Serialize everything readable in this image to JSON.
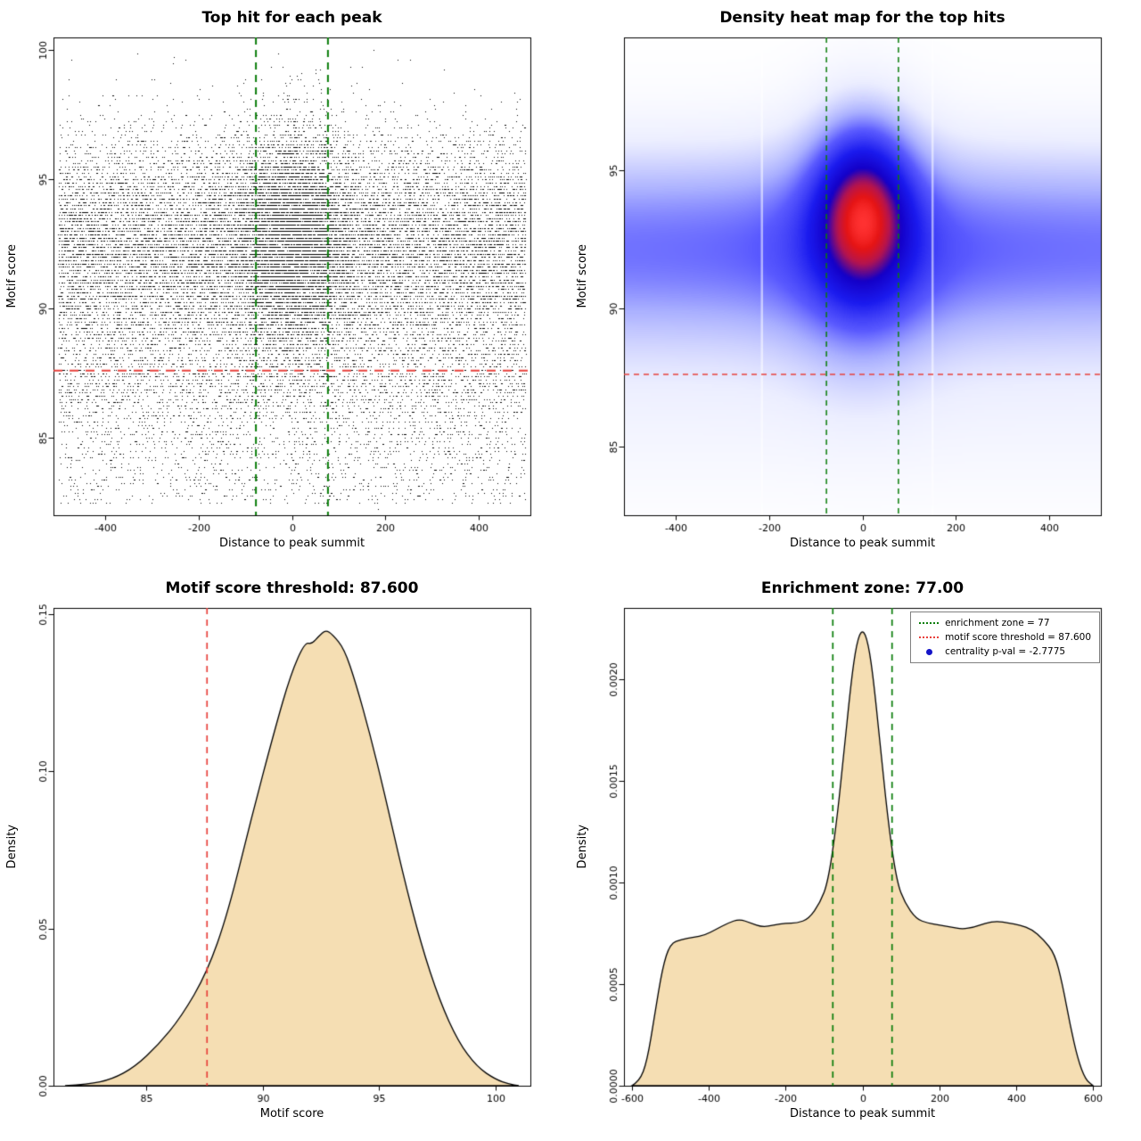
{
  "figure": {
    "background": "#ffffff",
    "thresholds": {
      "motif_score_threshold": "87.600",
      "enrichment_zone": "77.00",
      "centrality_pval": "-2.7775"
    }
  },
  "legend": {
    "items": [
      {
        "label": "enrichment zone = 77",
        "swatch": "green-dotted-line",
        "color": "#0a7d0a"
      },
      {
        "label": "motif score threshold = 87.600",
        "swatch": "red-dotted-line",
        "color": "#e8413c"
      },
      {
        "label": "centrality p-val = -2.7775",
        "swatch": "blue-dot",
        "color": "#1414c8"
      }
    ]
  },
  "chart_data": [
    {
      "id": "top-hit-scatter",
      "type": "scatter",
      "title": "Top hit for each peak",
      "xlabel": "Distance to peak summit",
      "ylabel": "Motif score",
      "xlim": [
        -510,
        510
      ],
      "ylim": [
        82,
        100.5
      ],
      "xticks": [
        {
          "v": -400,
          "l": "-400"
        },
        {
          "v": -200,
          "l": "-200"
        },
        {
          "v": 0,
          "l": "0"
        },
        {
          "v": 200,
          "l": "200"
        },
        {
          "v": 400,
          "l": "400"
        }
      ],
      "yticks": [
        {
          "v": 85,
          "l": "85"
        },
        {
          "v": 90,
          "l": "90"
        },
        {
          "v": 95,
          "l": "95"
        },
        {
          "v": 100,
          "l": "100"
        }
      ],
      "point_color": "#000000",
      "sim": {
        "n": 26000,
        "seed": 42,
        "x_range": [
          -500,
          500
        ],
        "quantize": 0.125,
        "main": {
          "mean": 92.7,
          "sd": 2.05,
          "frac": 0.76,
          "central_frac": 0.3,
          "central_sd": 62
        },
        "mid": {
          "mean": 88.6,
          "sd": 1.9,
          "frac": 0.16
        },
        "floor": {
          "min": 82.5,
          "range": 5.2
        }
      },
      "vlines": [
        {
          "x": -77,
          "color": "#0a7d0a",
          "width": 2,
          "dash": [
            8,
            6
          ]
        },
        {
          "x": 77,
          "color": "#0a7d0a",
          "width": 2,
          "dash": [
            8,
            6
          ]
        }
      ],
      "hlines": [
        {
          "y": 87.6,
          "color": "#e8413c",
          "width": 2,
          "dash": [
            10,
            8
          ]
        }
      ]
    },
    {
      "id": "density-heatmap",
      "type": "heatmap",
      "title": "Density heat map for the top hits",
      "xlabel": "Distance to peak summit",
      "ylabel": "Motif score",
      "xlim": [
        -510,
        510
      ],
      "ylim": [
        82.5,
        99.8
      ],
      "xticks": [
        {
          "v": -400,
          "l": "-400"
        },
        {
          "v": -200,
          "l": "-200"
        },
        {
          "v": 0,
          "l": "0"
        },
        {
          "v": 200,
          "l": "200"
        },
        {
          "v": 400,
          "l": "400"
        }
      ],
      "yticks": [
        {
          "v": 85,
          "l": "85"
        },
        {
          "v": 90,
          "l": "90"
        },
        {
          "v": 95,
          "l": "95"
        }
      ],
      "sim": {
        "band": {
          "y": 92.2,
          "sd": 2.3,
          "amp": 0.46
        },
        "widen": {
          "xsd": 210,
          "amp": 0.08
        },
        "blob": {
          "x": 2,
          "xsd": 66,
          "y": 93.5,
          "ysd": 1.9,
          "amp": 1.1
        },
        "blob2": {
          "x": 0,
          "xsd": 100,
          "y": 92.3,
          "ysd": 3.0,
          "amp": 0.32
        },
        "low": {
          "y": 86.8,
          "sd": 2.4,
          "amp": 0.07
        },
        "gamma": 0.9
      },
      "colormap": [
        [
          0,
          "#ffffff"
        ],
        [
          0.08,
          "#eceeff"
        ],
        [
          0.2,
          "#aab0ff"
        ],
        [
          0.32,
          "#5a5aff"
        ],
        [
          0.5,
          "#1b1bef"
        ],
        [
          0.68,
          "#1400c8"
        ],
        [
          0.82,
          "#b41450"
        ],
        [
          0.92,
          "#e61414"
        ],
        [
          1,
          "#ff3232"
        ]
      ],
      "white_streaks": [
        -215,
        150
      ],
      "vlines": [
        {
          "x": -77,
          "color": "#0a7d0a",
          "width": 1.5,
          "dash": [
            6,
            5
          ]
        },
        {
          "x": 77,
          "color": "#0a7d0a",
          "width": 1.5,
          "dash": [
            6,
            5
          ]
        }
      ],
      "hlines": [
        {
          "y": 87.6,
          "color": "#e8413c",
          "width": 1.3,
          "dash": [
            6,
            5
          ]
        }
      ]
    },
    {
      "id": "motif-score-density",
      "type": "density",
      "title": "Motif score threshold: 87.600",
      "xlabel": "Motif score",
      "ylabel": "Density",
      "xlim": [
        81,
        101.5
      ],
      "ylim": [
        0,
        0.152
      ],
      "xticks": [
        {
          "v": 85,
          "l": "85"
        },
        {
          "v": 90,
          "l": "90"
        },
        {
          "v": 95,
          "l": "95"
        },
        {
          "v": 100,
          "l": "100"
        }
      ],
      "yticks": [
        {
          "v": 0,
          "l": "0.00"
        },
        {
          "v": 0.05,
          "l": "0.05"
        },
        {
          "v": 0.1,
          "l": "0.10"
        },
        {
          "v": 0.15,
          "l": "0.15"
        }
      ],
      "fill": "#f5deb3",
      "stroke": "#000000",
      "points": [
        [
          81.5,
          0
        ],
        [
          82.5,
          0.0005
        ],
        [
          83.5,
          0.002
        ],
        [
          84.5,
          0.006
        ],
        [
          85.5,
          0.013
        ],
        [
          86.5,
          0.022
        ],
        [
          87.6,
          0.036
        ],
        [
          88.5,
          0.055
        ],
        [
          89.5,
          0.085
        ],
        [
          90.5,
          0.113
        ],
        [
          91.2,
          0.131
        ],
        [
          91.8,
          0.141
        ],
        [
          92.1,
          0.1405
        ],
        [
          92.4,
          0.143
        ],
        [
          92.7,
          0.145
        ],
        [
          93.0,
          0.1435
        ],
        [
          93.5,
          0.139
        ],
        [
          94.0,
          0.128
        ],
        [
          94.6,
          0.112
        ],
        [
          95.2,
          0.094
        ],
        [
          96.0,
          0.068
        ],
        [
          96.8,
          0.045
        ],
        [
          97.6,
          0.027
        ],
        [
          98.4,
          0.014
        ],
        [
          99.2,
          0.006
        ],
        [
          100.0,
          0.002
        ],
        [
          100.6,
          0.0005
        ],
        [
          101.0,
          0
        ]
      ],
      "vlines": [
        {
          "x": 87.6,
          "color": "#e8413c",
          "width": 1.7,
          "dash": [
            7,
            6
          ]
        }
      ],
      "hlines": []
    },
    {
      "id": "distance-density",
      "type": "density",
      "title": "Enrichment zone: 77.00",
      "xlabel": "Distance to peak summit",
      "ylabel": "Density",
      "xlim": [
        -620,
        620
      ],
      "ylim": [
        0,
        0.00235
      ],
      "xticks": [
        {
          "v": -600,
          "l": "-600"
        },
        {
          "v": -400,
          "l": "-400"
        },
        {
          "v": -200,
          "l": "-200"
        },
        {
          "v": 0,
          "l": "0"
        },
        {
          "v": 200,
          "l": "200"
        },
        {
          "v": 400,
          "l": "400"
        },
        {
          "v": 600,
          "l": "600"
        }
      ],
      "yticks": [
        {
          "v": 0,
          "l": "0.0000"
        },
        {
          "v": 0.0005,
          "l": "0.0005"
        },
        {
          "v": 0.001,
          "l": "0.0010"
        },
        {
          "v": 0.0015,
          "l": "0.0015"
        },
        {
          "v": 0.002,
          "l": "0.0020"
        }
      ],
      "fill": "#f5deb3",
      "stroke": "#000000",
      "points": [
        [
          -600,
          0
        ],
        [
          -580,
          2e-05
        ],
        [
          -560,
          0.00012
        ],
        [
          -540,
          0.00035
        ],
        [
          -520,
          0.00058
        ],
        [
          -500,
          0.0007
        ],
        [
          -470,
          0.00072
        ],
        [
          -440,
          0.00073
        ],
        [
          -410,
          0.00074
        ],
        [
          -380,
          0.00077
        ],
        [
          -350,
          0.0008
        ],
        [
          -320,
          0.00082
        ],
        [
          -290,
          0.0008
        ],
        [
          -260,
          0.00078
        ],
        [
          -230,
          0.00079
        ],
        [
          -200,
          0.0008
        ],
        [
          -170,
          0.0008
        ],
        [
          -140,
          0.00082
        ],
        [
          -110,
          0.0009
        ],
        [
          -90,
          0.001
        ],
        [
          -70,
          0.00125
        ],
        [
          -50,
          0.0016
        ],
        [
          -30,
          0.00198
        ],
        [
          -15,
          0.00218
        ],
        [
          0,
          0.00225
        ],
        [
          15,
          0.00218
        ],
        [
          30,
          0.00198
        ],
        [
          50,
          0.0016
        ],
        [
          70,
          0.00125
        ],
        [
          90,
          0.001
        ],
        [
          110,
          0.0009
        ],
        [
          140,
          0.00082
        ],
        [
          170,
          0.0008
        ],
        [
          200,
          0.00079
        ],
        [
          230,
          0.00078
        ],
        [
          260,
          0.00077
        ],
        [
          290,
          0.00078
        ],
        [
          320,
          0.0008
        ],
        [
          350,
          0.00081
        ],
        [
          380,
          0.0008
        ],
        [
          410,
          0.00079
        ],
        [
          440,
          0.00077
        ],
        [
          470,
          0.00072
        ],
        [
          500,
          0.00065
        ],
        [
          520,
          0.0005
        ],
        [
          540,
          0.0003
        ],
        [
          560,
          0.00013
        ],
        [
          580,
          3e-05
        ],
        [
          600,
          0
        ]
      ],
      "vlines": [
        {
          "x": -77,
          "color": "#0a7d0a",
          "width": 1.7,
          "dash": [
            7,
            6
          ]
        },
        {
          "x": 77,
          "color": "#0a7d0a",
          "width": 1.7,
          "dash": [
            7,
            6
          ]
        }
      ],
      "hlines": []
    }
  ]
}
